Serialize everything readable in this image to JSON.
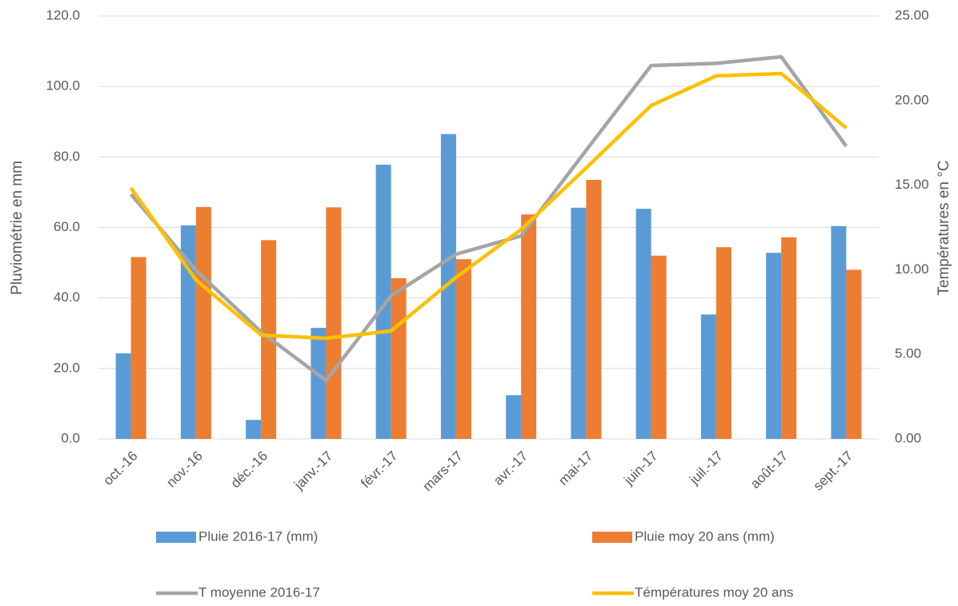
{
  "chart_data": {
    "type": "bar-line",
    "categories": [
      "oct.-16",
      "nov.-16",
      "déc.-16",
      "janv.-17",
      "févr.-17",
      "mars-17",
      "avr.-17",
      "mai-17",
      "juin-17",
      "juil.-17",
      "août-17",
      "sept.-17"
    ],
    "series": [
      {
        "name": "Pluie  2016-17 (mm)",
        "color": "#5b9bd5",
        "type": "bar",
        "values": [
          24.3,
          60.6,
          5.4,
          31.5,
          77.8,
          86.5,
          12.4,
          65.6,
          65.3,
          35.3,
          52.8,
          60.4
        ]
      },
      {
        "name": "Pluie moy 20 ans (mm)",
        "color": "#ed7d31",
        "type": "bar",
        "values": [
          51.6,
          65.8,
          56.4,
          65.7,
          45.6,
          51.0,
          63.7,
          73.5,
          52.0,
          54.4,
          57.2,
          48.0
        ]
      },
      {
        "name": "T moyenne 2016-17",
        "color": "#a5a5a5",
        "type": "line",
        "axis": "y2",
        "values": [
          14.46,
          9.97,
          6.33,
          3.45,
          8.46,
          10.92,
          12.0,
          17.06,
          22.07,
          22.2,
          22.59,
          17.3
        ]
      },
      {
        "name": "Témpératures moy  20 ans",
        "color": "#ffc000",
        "type": "line",
        "axis": "y2",
        "values": [
          14.84,
          9.4,
          6.14,
          5.95,
          6.38,
          9.55,
          12.38,
          16.02,
          19.71,
          21.46,
          21.6,
          18.38
        ]
      }
    ],
    "ylabel": "Pluviométrie en mm",
    "y2label": "Températures en °C",
    "ylim": [
      0,
      120
    ],
    "yticks": [
      {
        "value": 0,
        "label": "0.0"
      },
      {
        "value": 20,
        "label": "20.0"
      },
      {
        "value": 40,
        "label": "40.0"
      },
      {
        "value": 60,
        "label": "60.0"
      },
      {
        "value": 80,
        "label": "80.0"
      },
      {
        "value": 100,
        "label": "100.0"
      },
      {
        "value": 120,
        "label": "120.0"
      }
    ],
    "y2lim": [
      0,
      25
    ],
    "y2ticks": [
      {
        "value": 0,
        "label": "0.00"
      },
      {
        "value": 5,
        "label": "5.00"
      },
      {
        "value": 10,
        "label": "10.00"
      },
      {
        "value": 15,
        "label": "15.00"
      },
      {
        "value": 20,
        "label": "20.00"
      },
      {
        "value": 25,
        "label": "25.00"
      }
    ],
    "grid": true
  }
}
